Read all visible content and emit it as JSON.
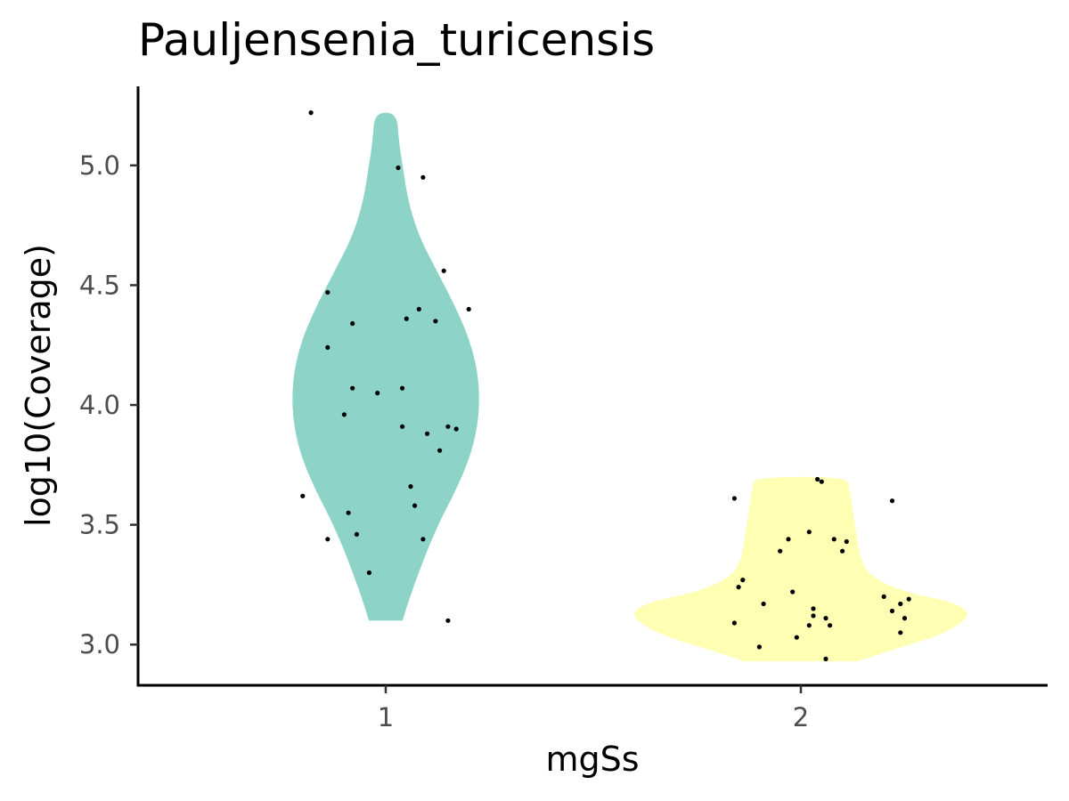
{
  "chart_data": {
    "type": "violin",
    "title": "Pauljensenia_turicensis",
    "xlabel": "mgSs",
    "ylabel": "log10(Coverage)",
    "categories": [
      "1",
      "2"
    ],
    "ylim": [
      2.83,
      5.33
    ],
    "yticks": [
      3.0,
      3.5,
      4.0,
      4.5,
      5.0
    ],
    "ytick_labels": [
      "3.0",
      "3.5",
      "4.0",
      "4.5",
      "5.0"
    ],
    "grid": false,
    "legend": "none",
    "series": [
      {
        "category": "1",
        "color": "#8dd3c7",
        "range": [
          3.1,
          5.22
        ],
        "density_profile": [
          [
            3.1,
            0.09
          ],
          [
            3.2,
            0.13
          ],
          [
            3.35,
            0.2
          ],
          [
            3.5,
            0.28
          ],
          [
            3.65,
            0.38
          ],
          [
            3.8,
            0.46
          ],
          [
            3.95,
            0.5
          ],
          [
            4.1,
            0.5
          ],
          [
            4.25,
            0.46
          ],
          [
            4.4,
            0.38
          ],
          [
            4.55,
            0.28
          ],
          [
            4.7,
            0.18
          ],
          [
            4.85,
            0.12
          ],
          [
            5.0,
            0.09
          ],
          [
            5.1,
            0.07
          ],
          [
            5.22,
            0.06
          ]
        ],
        "points": [
          [
            0.82,
            5.22
          ],
          [
            1.03,
            4.99
          ],
          [
            1.09,
            4.95
          ],
          [
            1.14,
            4.56
          ],
          [
            0.86,
            4.47
          ],
          [
            1.2,
            4.4
          ],
          [
            1.08,
            4.4
          ],
          [
            1.05,
            4.36
          ],
          [
            1.12,
            4.35
          ],
          [
            0.92,
            4.34
          ],
          [
            0.86,
            4.24
          ],
          [
            0.92,
            4.07
          ],
          [
            1.04,
            4.07
          ],
          [
            0.98,
            4.05
          ],
          [
            0.9,
            3.96
          ],
          [
            1.04,
            3.91
          ],
          [
            1.15,
            3.91
          ],
          [
            1.17,
            3.9
          ],
          [
            1.1,
            3.88
          ],
          [
            1.13,
            3.81
          ],
          [
            1.06,
            3.66
          ],
          [
            0.8,
            3.62
          ],
          [
            1.07,
            3.58
          ],
          [
            0.91,
            3.55
          ],
          [
            0.93,
            3.46
          ],
          [
            0.86,
            3.44
          ],
          [
            1.09,
            3.44
          ],
          [
            0.96,
            3.3
          ],
          [
            1.15,
            3.1
          ]
        ]
      },
      {
        "category": "2",
        "color": "#ffffb3",
        "range": [
          2.93,
          3.7
        ],
        "density_profile": [
          [
            2.93,
            0.3
          ],
          [
            2.98,
            0.5
          ],
          [
            3.04,
            0.75
          ],
          [
            3.1,
            0.88
          ],
          [
            3.14,
            0.9
          ],
          [
            3.18,
            0.8
          ],
          [
            3.22,
            0.55
          ],
          [
            3.28,
            0.38
          ],
          [
            3.35,
            0.32
          ],
          [
            3.45,
            0.3
          ],
          [
            3.55,
            0.28
          ],
          [
            3.65,
            0.26
          ],
          [
            3.7,
            0.25
          ]
        ],
        "points": [
          [
            2.04,
            3.69
          ],
          [
            2.05,
            3.68
          ],
          [
            1.84,
            3.61
          ],
          [
            2.22,
            3.6
          ],
          [
            2.02,
            3.47
          ],
          [
            2.08,
            3.44
          ],
          [
            1.97,
            3.44
          ],
          [
            2.11,
            3.43
          ],
          [
            1.95,
            3.39
          ],
          [
            2.1,
            3.39
          ],
          [
            1.86,
            3.27
          ],
          [
            1.85,
            3.24
          ],
          [
            1.98,
            3.22
          ],
          [
            2.2,
            3.2
          ],
          [
            2.26,
            3.19
          ],
          [
            2.24,
            3.17
          ],
          [
            1.91,
            3.17
          ],
          [
            2.03,
            3.15
          ],
          [
            2.22,
            3.14
          ],
          [
            2.03,
            3.12
          ],
          [
            2.06,
            3.11
          ],
          [
            2.25,
            3.11
          ],
          [
            1.84,
            3.09
          ],
          [
            2.02,
            3.08
          ],
          [
            2.07,
            3.08
          ],
          [
            2.24,
            3.05
          ],
          [
            1.99,
            3.03
          ],
          [
            1.9,
            2.99
          ],
          [
            2.06,
            2.94
          ]
        ]
      }
    ]
  }
}
